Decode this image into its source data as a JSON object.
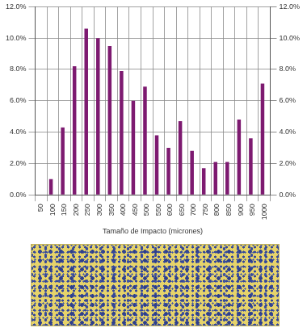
{
  "chart_data": {
    "type": "bar",
    "x_label": "Tamaño de Impacto (micrones)",
    "categories": [
      "50",
      "100",
      "150",
      "200",
      "250",
      "300",
      "350",
      "400",
      "450",
      "500",
      "550",
      "600",
      "650",
      "700",
      "750",
      "800",
      "850",
      "900",
      "950",
      "1000"
    ],
    "values": [
      0,
      1.0,
      4.3,
      8.2,
      10.6,
      10.0,
      9.5,
      7.9,
      6.0,
      6.9,
      3.8,
      3.0,
      4.7,
      2.8,
      1.7,
      2.1,
      2.1,
      4.8,
      3.6,
      7.1
    ],
    "color": "#7d1a70",
    "ylim": [
      0,
      12
    ],
    "yticks": [
      {
        "value": 0,
        "label": "0.0%"
      },
      {
        "value": 2,
        "label": "2.0%"
      },
      {
        "value": 4,
        "label": "4.0%"
      },
      {
        "value": 6,
        "label": "6.0%"
      },
      {
        "value": 8,
        "label": "8.0%"
      },
      {
        "value": 10,
        "label": "10.0%"
      },
      {
        "value": 12,
        "label": "12.0%"
      }
    ],
    "y2lim": [
      0,
      12
    ],
    "y2ticks": [
      {
        "value": 0,
        "label": "0.0%"
      },
      {
        "value": 2,
        "label": "2.0%"
      },
      {
        "value": 4,
        "label": "4.0%"
      },
      {
        "value": 6,
        "label": "6.0%"
      },
      {
        "value": 8,
        "label": "8.0%"
      },
      {
        "value": 10,
        "label": "10.0%"
      },
      {
        "value": 12,
        "label": "12.0%"
      }
    ],
    "grid": true
  }
}
